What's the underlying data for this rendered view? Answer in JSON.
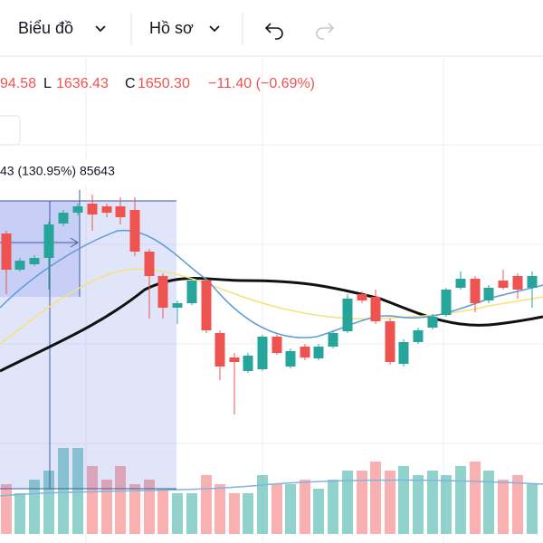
{
  "toolbar": {
    "chart_menu": "Biểu đồ",
    "profile_menu": "Hồ sơ"
  },
  "ohlc": {
    "open_partial": "94.58",
    "low_label": "L",
    "low": "1636.43",
    "close_label": "C",
    "close": "1650.30",
    "change": "−11.40 (−0.69%)"
  },
  "measure_tooltip": "43 (130.95%) 85643"
}
